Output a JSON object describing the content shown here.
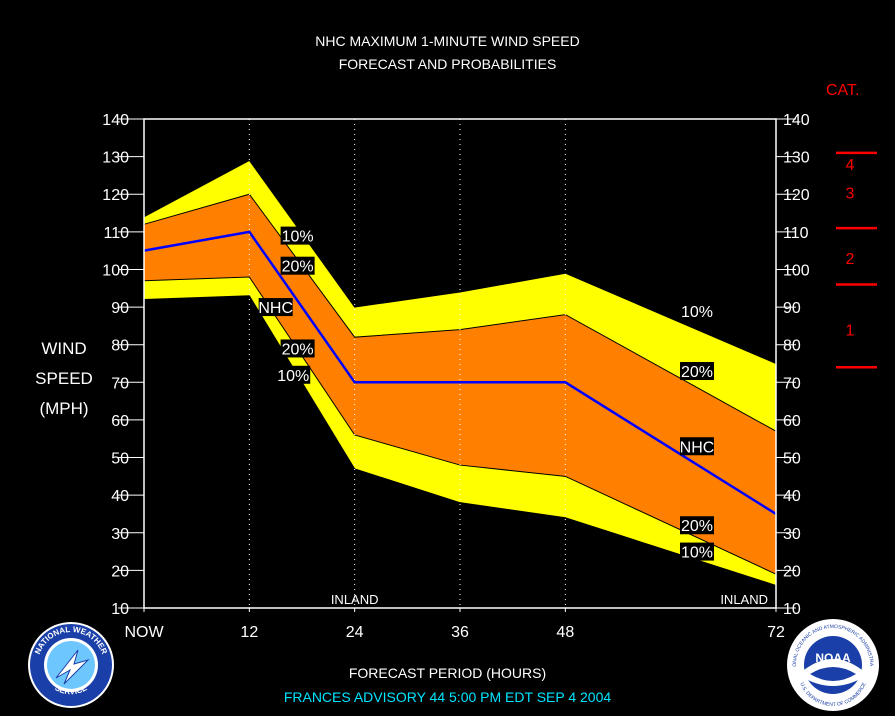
{
  "title_lines": [
    "NHC MAXIMUM 1-MINUTE WIND SPEED",
    "FORECAST AND PROBABILITIES"
  ],
  "ylabel_lines": [
    "WIND",
    "SPEED",
    "(MPH)"
  ],
  "xlabel": "FORECAST PERIOD (HOURS)",
  "advisory": "FRANCES   ADVISORY  44 5:00  PM  EDT  SEP  4  2004",
  "category": {
    "header": "CAT.",
    "labels": [
      {
        "text": "4",
        "mid": 128
      },
      {
        "text": "3",
        "mid": 120.5
      },
      {
        "text": "2",
        "mid": 103
      },
      {
        "text": "1",
        "mid": 84
      }
    ],
    "thresholds": [
      131,
      111,
      96,
      74
    ]
  },
  "colors": {
    "yellow": "#ffff00",
    "orange": "#ff8000",
    "nhc_line": "#0000ff",
    "category": "#ff0000",
    "advisory_text": "#00e5ff",
    "background": "#000000"
  },
  "chart_data": {
    "type": "area",
    "x": [
      0,
      12,
      24,
      36,
      48,
      72
    ],
    "x_tick_labels": [
      "NOW",
      "12",
      "24",
      "36",
      "48",
      "72"
    ],
    "ylim": [
      10,
      140
    ],
    "y_ticks": [
      10,
      20,
      30,
      40,
      50,
      60,
      70,
      80,
      90,
      100,
      110,
      120,
      130,
      140
    ],
    "series": [
      {
        "name": "10%",
        "x": [
          0,
          12,
          24,
          36,
          48,
          72
        ],
        "values": [
          114,
          129,
          90,
          94,
          99,
          75
        ]
      },
      {
        "name": "20%",
        "x": [
          0,
          12,
          24,
          36,
          48,
          72
        ],
        "values": [
          112,
          120,
          82,
          84,
          88,
          57
        ]
      },
      {
        "name": "NHC",
        "x": [
          0,
          12,
          24,
          36,
          48,
          72
        ],
        "values": [
          105,
          110,
          70,
          70,
          70,
          35
        ]
      },
      {
        "name": "20%",
        "x": [
          0,
          12,
          24,
          36,
          48,
          72
        ],
        "values": [
          97,
          98,
          56,
          48,
          45,
          19
        ]
      },
      {
        "name": "10%",
        "x": [
          0,
          12,
          24,
          36,
          48,
          72
        ],
        "values": [
          92,
          93,
          47,
          38,
          34,
          16
        ]
      }
    ],
    "annotations": [
      {
        "text": "INLAND",
        "x": 24
      },
      {
        "text": "INLAND",
        "x": 72
      }
    ],
    "band_labels": [
      {
        "text": "10%",
        "x": 17.5,
        "y": 109
      },
      {
        "text": "20%",
        "x": 17.5,
        "y": 101
      },
      {
        "text": "NHC",
        "x": 15.0,
        "y": 90
      },
      {
        "text": "20%",
        "x": 17.5,
        "y": 79
      },
      {
        "text": "10%",
        "x": 17.0,
        "y": 72
      },
      {
        "text": "10%",
        "x": 63.0,
        "y": 89
      },
      {
        "text": "20%",
        "x": 63.0,
        "y": 73
      },
      {
        "text": "NHC",
        "x": 63.0,
        "y": 53
      },
      {
        "text": "20%",
        "x": 63.0,
        "y": 32
      },
      {
        "text": "10%",
        "x": 63.0,
        "y": 25
      }
    ]
  },
  "logos": {
    "nws": {
      "text_top": "NATIONAL WEATHER",
      "text_bottom": "SERVICE"
    },
    "noaa": {
      "center": "NOAA",
      "ring_top": "NATIONAL OCEANIC AND ATMOSPHERIC ADMINISTRATION",
      "ring_bottom": "U.S. DEPARTMENT OF COMMERCE"
    }
  }
}
